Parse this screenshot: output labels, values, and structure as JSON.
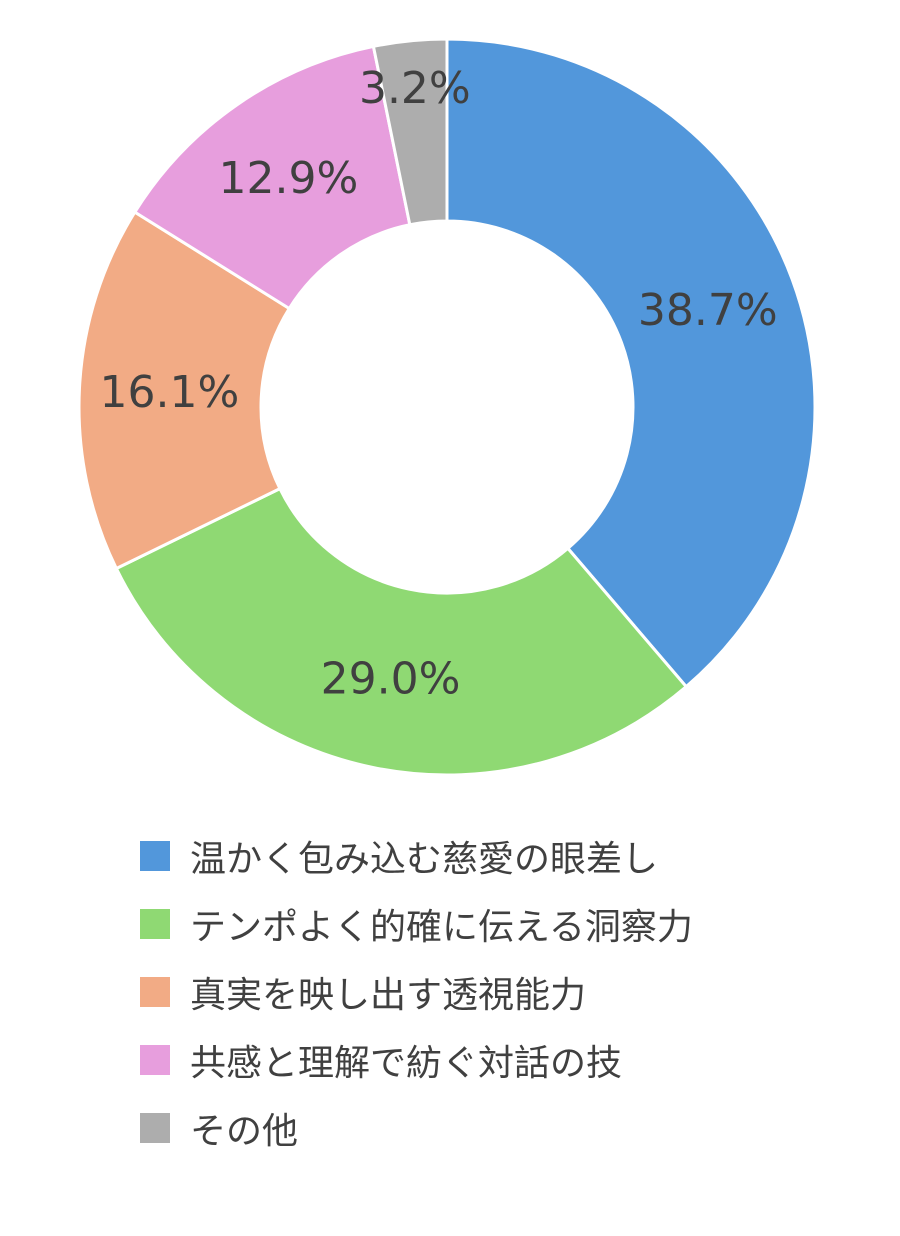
{
  "chart_data": {
    "type": "pie",
    "donut": true,
    "legend_position": "bottom",
    "slices": [
      {
        "name": "温かく包み込む慈愛の眼差し",
        "value": 38.7,
        "label": "38.7%",
        "color": "#5297DB"
      },
      {
        "name": "テンポよく的確に伝える洞察力",
        "value": 29.0,
        "label": "29.0%",
        "color": "#8FD973"
      },
      {
        "name": "真実を映し出す透視能力",
        "value": 16.1,
        "label": "16.1%",
        "color": "#F2AB85"
      },
      {
        "name": "共感と理解で紡ぐ対話の技",
        "value": 12.9,
        "label": "12.9%",
        "color": "#E79EDD"
      },
      {
        "name": "その他",
        "value": 3.2,
        "label": "3.2%",
        "color": "#ADADAD"
      }
    ]
  }
}
